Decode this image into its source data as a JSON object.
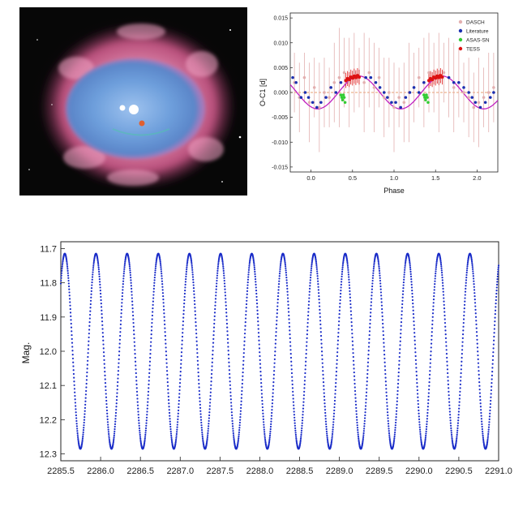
{
  "image": {
    "subject": "planetary-nebula",
    "colors": {
      "background": "#070707",
      "shell": "#c65f86",
      "core": "#6fa2dc",
      "star": "#ffffff",
      "marker": "#e06030"
    }
  },
  "chart_data": [
    {
      "type": "scatter",
      "xlabel": "Phase",
      "ylabel": "O-C1 [d]",
      "xlim": [
        -0.25,
        2.25
      ],
      "ylim": [
        -0.016,
        0.016
      ],
      "x_ticks": [
        "0.0",
        "0.5",
        "1.0",
        "1.5",
        "2.0"
      ],
      "x_tick_values": [
        0.0,
        0.5,
        1.0,
        1.5,
        2.0
      ],
      "y_ticks": [
        "0.015",
        "0.010",
        "0.005",
        "0.000",
        "-0.005",
        "-0.010",
        "-0.015"
      ],
      "y_tick_values": [
        0.015,
        0.01,
        0.005,
        0.0,
        -0.005,
        -0.01,
        -0.015
      ],
      "legend_position": "top-right",
      "fit_curve": {
        "offset": 0.0,
        "amplitude": 0.0033,
        "phase_of_max": 0.58,
        "color": "#c020c0"
      },
      "zero_line": {
        "y": 0.0,
        "color": "#e08040"
      },
      "series": [
        {
          "name": "DASCH",
          "color": "#e3b0b0",
          "x": [
            -0.2,
            -0.14,
            -0.08,
            -0.02,
            0.04,
            0.1,
            0.16,
            0.22,
            0.28,
            0.34,
            0.4,
            0.46,
            0.52,
            0.58,
            0.64,
            0.7,
            0.76,
            0.82,
            0.88,
            0.94,
            1.0,
            1.06,
            1.12,
            1.18,
            1.24,
            1.3,
            1.36,
            1.42,
            1.48,
            1.54,
            1.6,
            1.66,
            1.72,
            1.78,
            1.84,
            1.9,
            1.96,
            2.02,
            2.08,
            2.14,
            2.2
          ],
          "y": [
            0.002,
            -0.001,
            0.003,
            -0.002,
            0.001,
            -0.003,
            0.0,
            -0.001,
            0.002,
            0.003,
            0.004,
            0.002,
            0.004,
            0.003,
            0.002,
            0.004,
            0.001,
            0.003,
            -0.001,
            0.0,
            -0.003,
            -0.001,
            -0.002,
            0.0,
            0.001,
            0.003,
            0.002,
            0.004,
            0.003,
            0.002,
            0.004,
            0.003,
            0.001,
            0.002,
            0.0,
            -0.001,
            -0.003,
            -0.002,
            -0.001,
            0.0,
            0.001
          ],
          "err": [
            0.006,
            0.007,
            0.005,
            0.008,
            0.006,
            0.009,
            0.007,
            0.006,
            0.008,
            0.01,
            0.007,
            0.009,
            0.008,
            0.006,
            0.01,
            0.007,
            0.009,
            0.006,
            0.008,
            0.007,
            0.009,
            0.006,
            0.008,
            0.01,
            0.007,
            0.006,
            0.009,
            0.008,
            0.007,
            0.01,
            0.006,
            0.008,
            0.009,
            0.007,
            0.006,
            0.008,
            0.007,
            0.009,
            0.006,
            0.008,
            0.007
          ]
        },
        {
          "name": "Literature",
          "color": "#1a2fb0",
          "x": [
            -0.22,
            -0.18,
            -0.12,
            -0.07,
            -0.03,
            0.02,
            0.07,
            0.12,
            0.18,
            0.24,
            0.3,
            0.36,
            0.66,
            0.72,
            0.78,
            0.83,
            0.88,
            0.92,
            0.97,
            1.02,
            1.08,
            1.14,
            1.19,
            1.24,
            1.3,
            1.36,
            1.66,
            1.72,
            1.78,
            1.84,
            1.9,
            1.94,
            1.98,
            2.04,
            2.1,
            2.16,
            2.2
          ],
          "y": [
            0.003,
            0.002,
            -0.001,
            0.0,
            -0.001,
            -0.002,
            -0.003,
            -0.002,
            -0.001,
            0.001,
            0.0,
            0.002,
            0.003,
            0.003,
            0.002,
            0.001,
            0.0,
            -0.001,
            -0.002,
            -0.002,
            -0.003,
            -0.001,
            0.0,
            0.001,
            0.0,
            0.002,
            0.003,
            0.002,
            0.002,
            0.001,
            0.0,
            -0.001,
            -0.002,
            -0.003,
            -0.002,
            -0.001,
            0.0
          ]
        },
        {
          "name": "ASAS-SN",
          "color": "#33cc33",
          "x": [
            0.36,
            0.37,
            0.38,
            0.39,
            0.4,
            0.41,
            1.36,
            1.37,
            1.38,
            1.39,
            1.4,
            1.41
          ],
          "y": [
            -0.0005,
            -0.001,
            -0.0015,
            -0.0005,
            -0.001,
            -0.002,
            -0.0005,
            -0.001,
            -0.0015,
            -0.0005,
            -0.001,
            -0.002
          ]
        },
        {
          "name": "TESS",
          "color": "#dd1111",
          "x": [
            0.42,
            0.44,
            0.46,
            0.48,
            0.5,
            0.52,
            0.54,
            0.56,
            0.58,
            1.42,
            1.44,
            1.46,
            1.48,
            1.5,
            1.52,
            1.54,
            1.56,
            1.58
          ],
          "y": [
            0.0024,
            0.0028,
            0.0026,
            0.0031,
            0.0029,
            0.0033,
            0.003,
            0.0034,
            0.0031,
            0.0024,
            0.0028,
            0.0026,
            0.0031,
            0.0029,
            0.0033,
            0.003,
            0.0034,
            0.0031
          ],
          "err": [
            0.0015,
            0.0015,
            0.0015,
            0.0015,
            0.0015,
            0.0015,
            0.0015,
            0.0015,
            0.0015,
            0.0015,
            0.0015,
            0.0015,
            0.0015,
            0.0015,
            0.0015,
            0.0015,
            0.0015,
            0.0015
          ]
        }
      ]
    },
    {
      "type": "scatter",
      "xlabel": "",
      "ylabel": "Mag.",
      "xlim": [
        2285.5,
        2291.0
      ],
      "ylim": [
        12.32,
        11.68
      ],
      "y_inverted": true,
      "x_ticks": [
        "2285.5",
        "2286.0",
        "2286.5",
        "2287.0",
        "2287.5",
        "2288.0",
        "2288.5",
        "2289.0",
        "2289.5",
        "2290.0",
        "2290.5",
        "2291.0"
      ],
      "x_tick_values": [
        2285.5,
        2286.0,
        2286.5,
        2287.0,
        2287.5,
        2288.0,
        2288.5,
        2289.0,
        2289.5,
        2290.0,
        2290.5,
        2291.0
      ],
      "y_ticks": [
        "11.7",
        "11.8",
        "11.9",
        "12.0",
        "12.1",
        "12.2",
        "12.3"
      ],
      "y_tick_values": [
        11.7,
        11.8,
        11.9,
        12.0,
        12.1,
        12.2,
        12.3
      ],
      "series": [
        {
          "name": "",
          "color": "#1a2cc8",
          "model": {
            "mean": 12.0,
            "amplitude": 0.285,
            "period": 0.3915,
            "t_max": 2285.55,
            "t_start": 2285.5,
            "t_end": 2291.0,
            "sample_step": 0.0025
          }
        }
      ]
    }
  ]
}
